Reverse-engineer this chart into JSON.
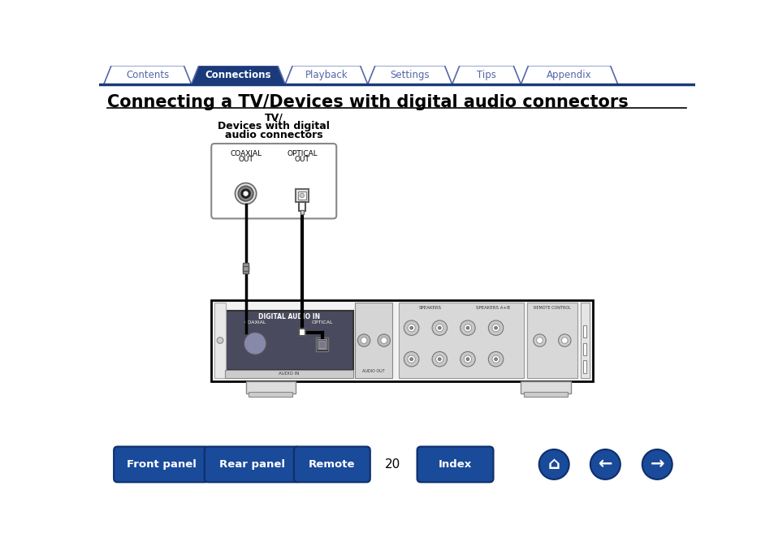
{
  "title": "Connecting a TV/Devices with digital audio connectors",
  "nav_tabs": [
    "Contents",
    "Connections",
    "Playback",
    "Settings",
    "Tips",
    "Appendix"
  ],
  "active_tab": "Connections",
  "active_tab_color": "#1a3a7a",
  "inactive_tab_color": "#ffffff",
  "tab_border_color": "#5566aa",
  "nav_line_color": "#1a3a7a",
  "bottom_buttons": [
    "Front panel",
    "Rear panel",
    "Remote",
    "Index"
  ],
  "bottom_button_color": "#1a4a9a",
  "page_number": "20",
  "bg_color": "#ffffff"
}
